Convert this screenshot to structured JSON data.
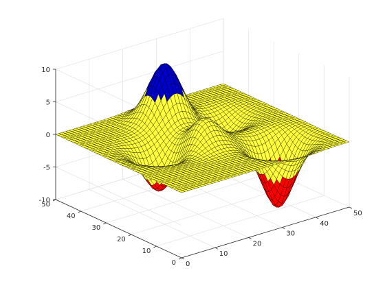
{
  "chart_data": {
    "type": "surface",
    "title": "",
    "xlabel": "",
    "ylabel": "",
    "zlabel": "",
    "grid": true,
    "xlim": [
      0,
      50
    ],
    "ylim": [
      0,
      50
    ],
    "zlim": [
      -10,
      10
    ],
    "x_ticks": [
      0,
      10,
      20,
      30,
      40,
      50
    ],
    "y_ticks": [
      0,
      10,
      20,
      30,
      40,
      50
    ],
    "z_ticks": [
      -10,
      -5,
      0,
      5,
      10
    ],
    "x_tick_labels": [
      "0",
      "10",
      "20",
      "30",
      "40",
      "50"
    ],
    "y_tick_labels": [
      "0",
      "10",
      "20",
      "30",
      "40",
      "50"
    ],
    "z_tick_labels": [
      "-10",
      "-5",
      "0",
      "5",
      "10"
    ],
    "grid_size": 49,
    "peaks": [
      {
        "x": 25,
        "y": 40,
        "z": 8.8
      },
      {
        "x": 37,
        "y": 11,
        "z": -10
      },
      {
        "x": 23,
        "y": 22,
        "z": 4
      },
      {
        "x": 13,
        "y": 26,
        "z": -6.5
      },
      {
        "x": 37,
        "y": 32,
        "z": -3
      }
    ],
    "color_bands": [
      {
        "from": -10,
        "to": -4.5,
        "color": "#ff0000"
      },
      {
        "from": -4.5,
        "to": 4.5,
        "color": "#ffff3b"
      },
      {
        "from": 4.5,
        "to": 10,
        "color": "#0000cc"
      }
    ],
    "edge_color": "#000000"
  }
}
